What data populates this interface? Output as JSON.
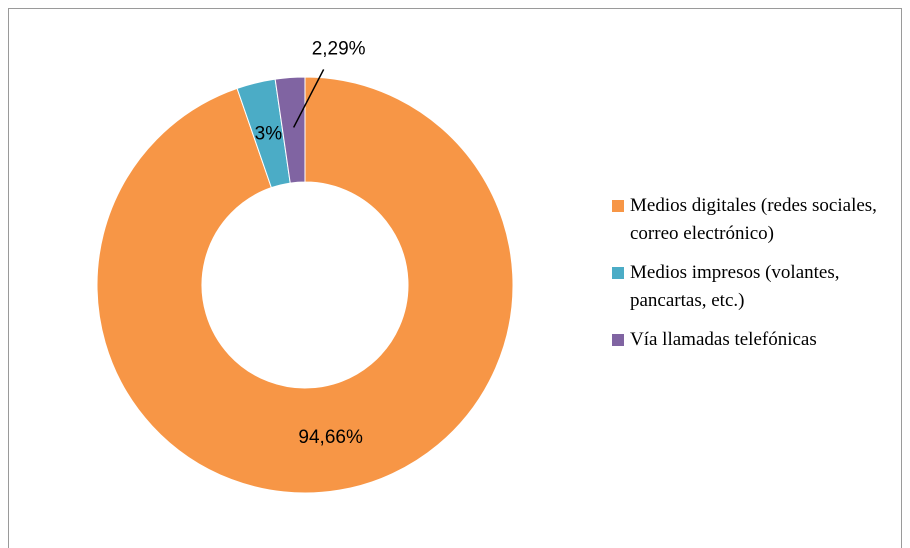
{
  "chart_data": {
    "type": "doughnut",
    "categories": [
      "Medios digitales (redes sociales, correo electrónico)",
      "Medios impresos (volantes, pancartas, etc.)",
      "Vía llamadas telefónicas"
    ],
    "values": [
      94.66,
      3,
      2.29
    ],
    "value_labels": [
      "94,66%",
      "3%",
      "2,29%"
    ],
    "colors": [
      "#f79646",
      "#4bacc6",
      "#8064a2"
    ],
    "legend": "right"
  }
}
